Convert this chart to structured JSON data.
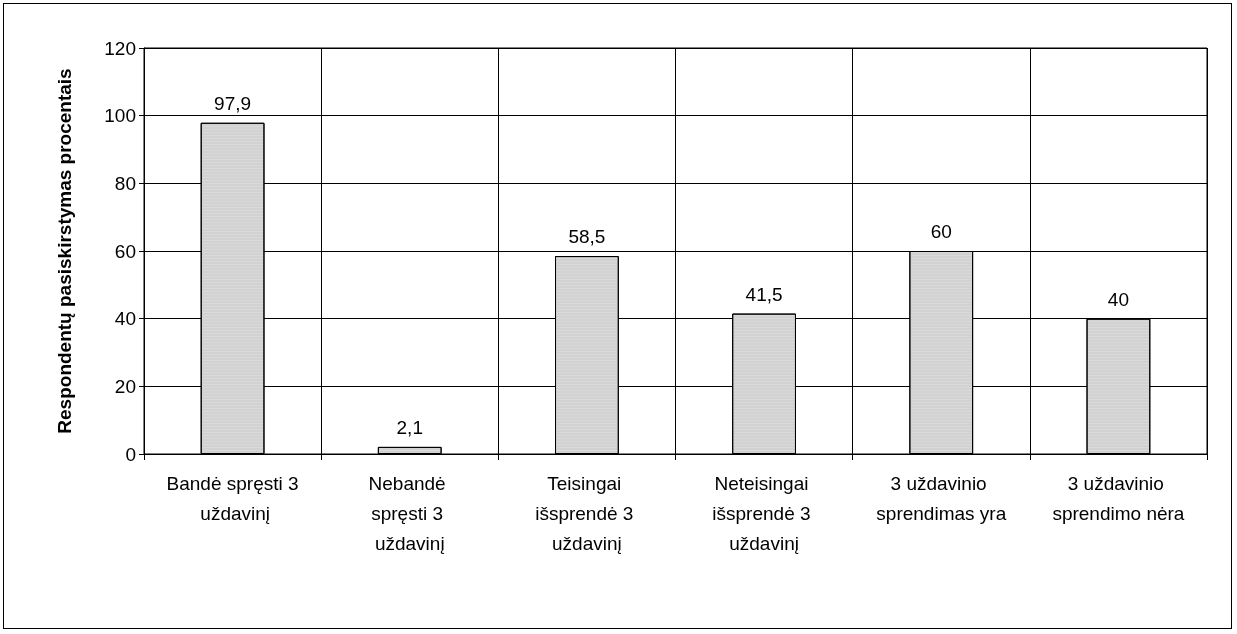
{
  "chart_data": {
    "type": "bar",
    "ylabel": "Respondentų pasiskirstymas procentais",
    "categories": [
      "Bandė spręsti 3 uždavinį",
      "Nebandė spręsti 3 uždavinį",
      "Teisingai išsprendė 3 uždavinį",
      "Neteisingai išsprendė 3 uždavinį",
      "3 uždavinio sprendimas yra",
      "3 uždavinio sprendimo nėra"
    ],
    "values": [
      97.9,
      2.1,
      58.5,
      41.5,
      60,
      40
    ],
    "color": "#d9d9d9",
    "value_labels": [
      "97,9",
      "2,1",
      "58,5",
      "41,5",
      "60",
      "40"
    ],
    "ylim": [
      0,
      120
    ],
    "yticks": [
      0,
      20,
      40,
      60,
      80,
      100,
      120
    ],
    "grid": true
  }
}
